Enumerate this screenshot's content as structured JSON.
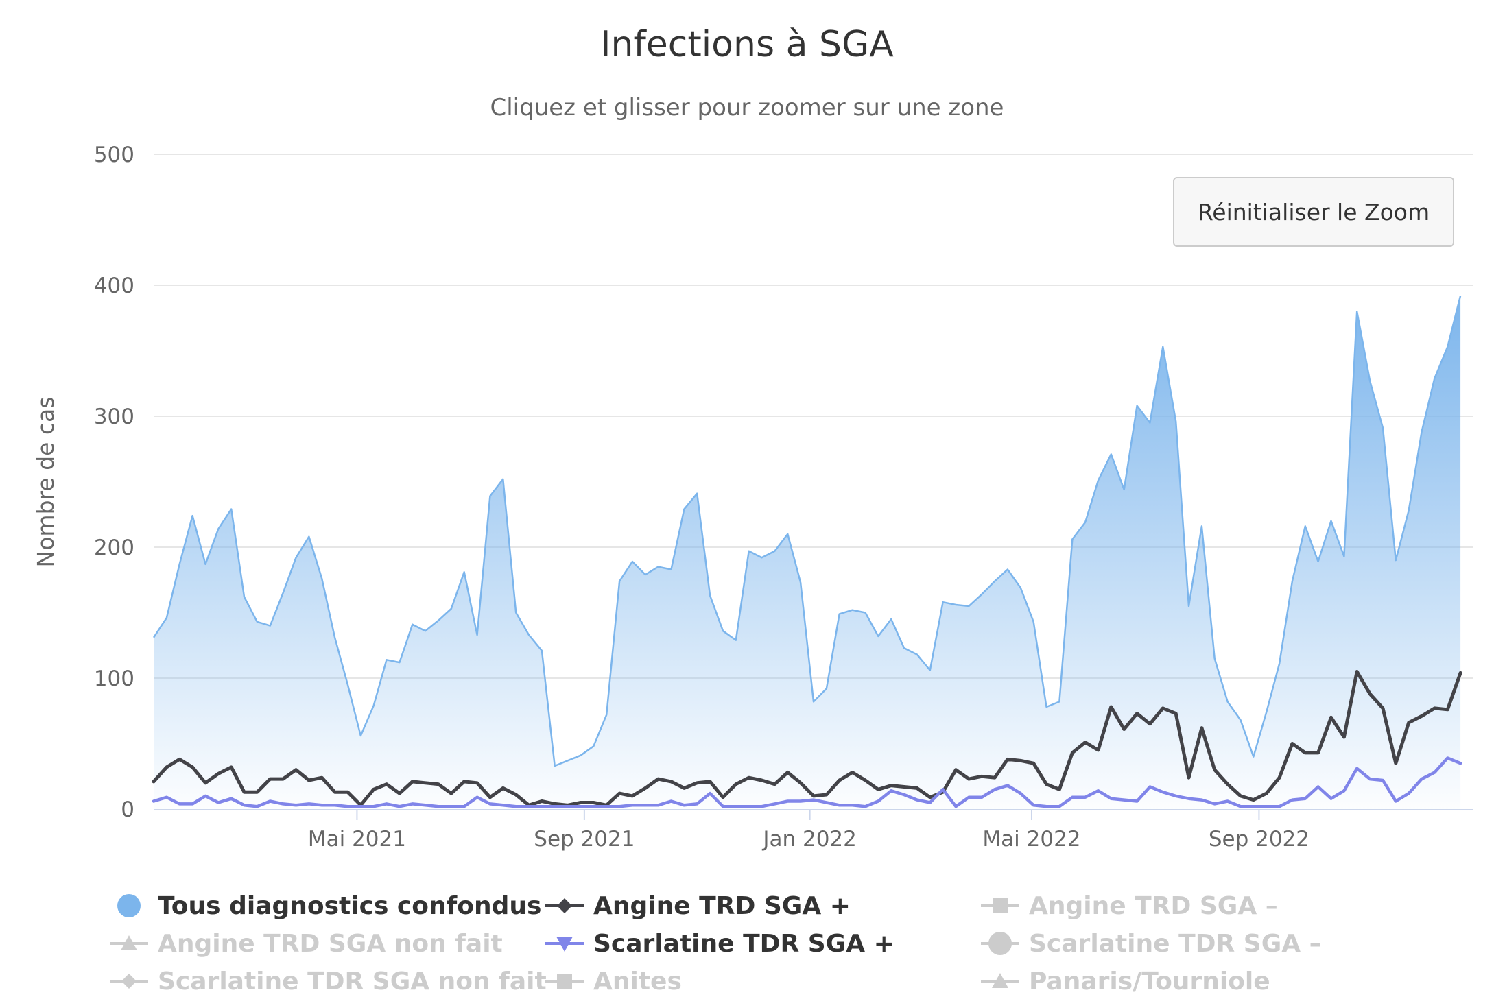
{
  "chart_data": {
    "type": "area",
    "title": "Infections à SGA",
    "subtitle": "Cliquez et glisser pour zoomer sur une zone",
    "ylabel": "Nombre de cas",
    "ylim": [
      0,
      500
    ],
    "yticks": [
      "0",
      "100",
      "200",
      "300",
      "400",
      "500"
    ],
    "xlim": [
      "2021-01-11",
      "2022-12-26"
    ],
    "xticks": [
      {
        "label": "Mai 2021",
        "date": "2021-05-01"
      },
      {
        "label": "Sep 2021",
        "date": "2021-09-01"
      },
      {
        "label": "Jan 2022",
        "date": "2022-01-01"
      },
      {
        "label": "Mai 2022",
        "date": "2022-05-01"
      },
      {
        "label": "Sep 2022",
        "date": "2022-09-01"
      }
    ],
    "x_start": "2021-01-11",
    "x_step_days": 7,
    "series": [
      {
        "name": "Tous diagnostics confondus",
        "type": "area",
        "color": "#7cb5ec",
        "visible": true,
        "values": [
          131,
          146,
          187,
          224,
          187,
          214,
          229,
          162,
          143,
          140,
          165,
          192,
          208,
          176,
          131,
          95,
          56,
          79,
          114,
          112,
          141,
          136,
          144,
          153,
          181,
          133,
          239,
          252,
          150,
          133,
          121,
          33,
          37,
          41,
          48,
          72,
          174,
          189,
          179,
          185,
          183,
          229,
          241,
          163,
          136,
          129,
          197,
          192,
          197,
          210,
          173,
          82,
          92,
          149,
          152,
          150,
          132,
          145,
          123,
          118,
          106,
          158,
          156,
          155,
          164,
          174,
          183,
          169,
          143,
          78,
          82,
          206,
          219,
          251,
          271,
          244,
          308,
          295,
          353,
          296,
          155,
          216,
          115,
          82,
          68,
          40,
          74,
          111,
          174,
          216,
          189,
          220,
          193,
          380,
          327,
          291,
          190,
          228,
          288,
          329,
          353,
          392
        ]
      },
      {
        "name": "Angine TRD SGA +",
        "type": "line",
        "color": "#434348",
        "visible": true,
        "values": [
          21,
          32,
          38,
          32,
          20,
          27,
          32,
          13,
          13,
          23,
          23,
          30,
          22,
          24,
          13,
          13,
          3,
          15,
          19,
          12,
          21,
          20,
          19,
          12,
          21,
          20,
          9,
          16,
          11,
          3,
          6,
          4,
          3,
          5,
          5,
          3,
          12,
          10,
          16,
          23,
          21,
          16,
          20,
          21,
          9,
          19,
          24,
          22,
          19,
          28,
          20,
          10,
          11,
          22,
          28,
          22,
          15,
          18,
          17,
          16,
          9,
          13,
          30,
          23,
          25,
          24,
          38,
          37,
          35,
          19,
          15,
          43,
          51,
          45,
          78,
          61,
          73,
          65,
          77,
          73,
          24,
          62,
          30,
          19,
          10,
          7,
          12,
          24,
          50,
          43,
          43,
          70,
          55,
          105,
          88,
          77,
          35,
          66,
          71,
          77,
          76,
          104
        ]
      },
      {
        "name": "Angine TRD SGA –",
        "type": "line",
        "color": "#cccccc",
        "visible": false,
        "values": []
      },
      {
        "name": "Angine TRD SGA non fait",
        "type": "line",
        "color": "#cccccc",
        "visible": false,
        "values": []
      },
      {
        "name": "Scarlatine TDR SGA +",
        "type": "line",
        "color": "#8085e9",
        "visible": true,
        "values": [
          6,
          9,
          4,
          4,
          10,
          5,
          8,
          3,
          2,
          6,
          4,
          3,
          4,
          3,
          3,
          2,
          2,
          2,
          4,
          2,
          4,
          3,
          2,
          2,
          2,
          9,
          4,
          3,
          2,
          2,
          2,
          2,
          2,
          2,
          2,
          2,
          2,
          3,
          3,
          3,
          6,
          3,
          4,
          12,
          2,
          2,
          2,
          2,
          4,
          6,
          6,
          7,
          5,
          3,
          3,
          2,
          6,
          14,
          11,
          7,
          5,
          15,
          2,
          9,
          9,
          15,
          18,
          12,
          3,
          2,
          2,
          9,
          9,
          14,
          8,
          7,
          6,
          17,
          13,
          10,
          8,
          7,
          4,
          6,
          2,
          2,
          2,
          2,
          7,
          8,
          17,
          8,
          14,
          31,
          23,
          22,
          6,
          12,
          23,
          28,
          39,
          35
        ]
      },
      {
        "name": "Scarlatine TDR SGA –",
        "type": "line",
        "color": "#cccccc",
        "visible": false,
        "values": []
      },
      {
        "name": "Scarlatine TDR SGA non fait",
        "type": "line",
        "color": "#cccccc",
        "visible": false,
        "values": []
      },
      {
        "name": "Anites",
        "type": "line",
        "color": "#cccccc",
        "visible": false,
        "values": []
      },
      {
        "name": "Panaris/Tourniole",
        "type": "line",
        "color": "#cccccc",
        "visible": false,
        "values": []
      }
    ]
  },
  "reset_zoom_label": "Réinitialiser le Zoom",
  "legend": [
    {
      "label": "Tous diagnostics confondus",
      "symbol": "circle",
      "color": "#7cb5ec",
      "visible": true
    },
    {
      "label": "Angine TRD SGA +",
      "symbol": "diamond",
      "color": "#434348",
      "visible": true
    },
    {
      "label": "Angine TRD SGA –",
      "symbol": "square",
      "color": "#cccccc",
      "visible": false
    },
    {
      "label": "Angine TRD SGA non fait",
      "symbol": "triangle",
      "color": "#cccccc",
      "visible": false
    },
    {
      "label": "Scarlatine TDR SGA +",
      "symbol": "triangle-down",
      "color": "#8085e9",
      "visible": true
    },
    {
      "label": "Scarlatine TDR SGA –",
      "symbol": "circle",
      "color": "#cccccc",
      "visible": false
    },
    {
      "label": "Scarlatine TDR SGA non fait",
      "symbol": "diamond",
      "color": "#cccccc",
      "visible": false
    },
    {
      "label": "Anites",
      "symbol": "square",
      "color": "#cccccc",
      "visible": false
    },
    {
      "label": "Panaris/Tourniole",
      "symbol": "triangle",
      "color": "#cccccc",
      "visible": false
    }
  ]
}
